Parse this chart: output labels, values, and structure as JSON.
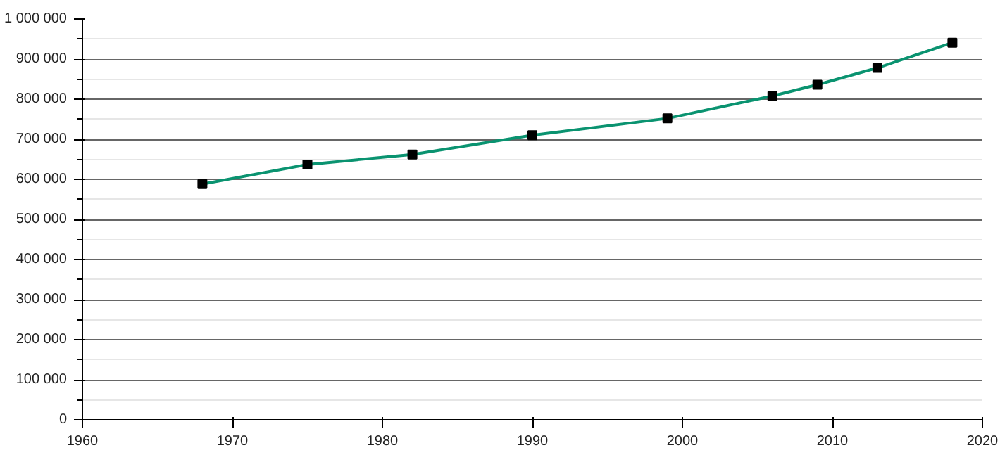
{
  "chart_data": {
    "type": "line",
    "x": [
      1968,
      1975,
      1982,
      1990,
      1999,
      2006,
      2009,
      2013,
      2018
    ],
    "series": [
      {
        "color": "#0a9370",
        "values": [
          588000,
          637000,
          662000,
          710000,
          752000,
          808000,
          836000,
          878000,
          941000
        ]
      }
    ],
    "xlim": [
      1960,
      2020
    ],
    "xticks": [
      1960,
      1970,
      1980,
      1990,
      2000,
      2010,
      2020
    ],
    "ylim": [
      0,
      1000000
    ],
    "yticks": [
      0,
      {
        "value": 100000,
        "label": "100 000"
      },
      {
        "value": 200000,
        "label": "200 000"
      },
      {
        "value": 300000,
        "label": "300 000"
      },
      {
        "value": 400000,
        "label": "400 000"
      },
      {
        "value": 500000,
        "label": "500 000"
      },
      {
        "value": 600000,
        "label": "600 000"
      },
      {
        "value": 700000,
        "label": "700 000"
      },
      {
        "value": 800000,
        "label": "800 000"
      },
      {
        "value": 900000,
        "label": "900 000"
      },
      {
        "value": 1000000,
        "label": "1 000 000"
      }
    ],
    "grid": "y",
    "marker": "square",
    "line_style": "solid"
  }
}
